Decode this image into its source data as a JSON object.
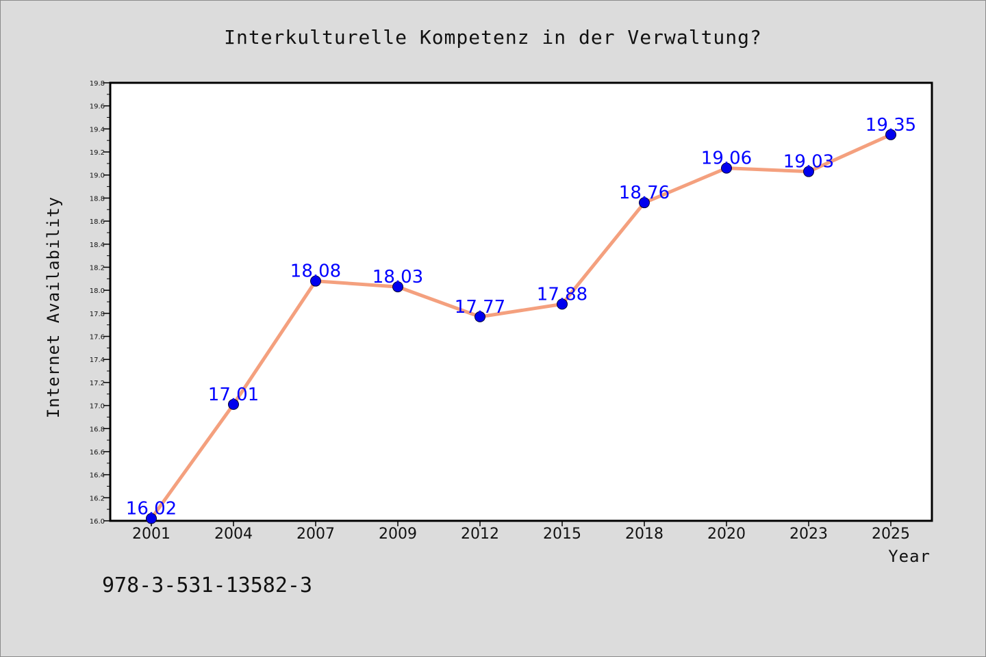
{
  "chart_data": {
    "type": "line",
    "title": "Interkulturelle Kompetenz in der Verwaltung?",
    "xlabel": "Year",
    "ylabel": "Internet Availability",
    "categories": [
      "2001",
      "2004",
      "2007",
      "2009",
      "2012",
      "2015",
      "2018",
      "2020",
      "2023",
      "2025"
    ],
    "series": [
      {
        "values": [
          16.02,
          17.01,
          18.08,
          18.03,
          17.77,
          17.88,
          18.76,
          19.06,
          19.03,
          19.35
        ],
        "data_labels": [
          "16.02",
          "17.01",
          "18.08",
          "18.03",
          "17.77",
          "17.88",
          "18.76",
          "19.06",
          "19.03",
          "19.35"
        ]
      }
    ],
    "ylim": [
      16.0,
      19.8
    ],
    "yticks": [
      "16.0",
      "16.2",
      "16.4",
      "16.6",
      "16.8",
      "17.0",
      "17.2",
      "17.4",
      "17.6",
      "17.8",
      "18.0",
      "18.2",
      "18.4",
      "18.6",
      "18.8",
      "19.0",
      "19.2",
      "19.4",
      "19.6",
      "19.8"
    ],
    "grid": false,
    "legend": "none",
    "line_color": "#f4a07e",
    "marker_color": "#0000ee",
    "label_color": "#0000ff"
  },
  "footer": {
    "isbn": "978-3-531-13582-3"
  }
}
